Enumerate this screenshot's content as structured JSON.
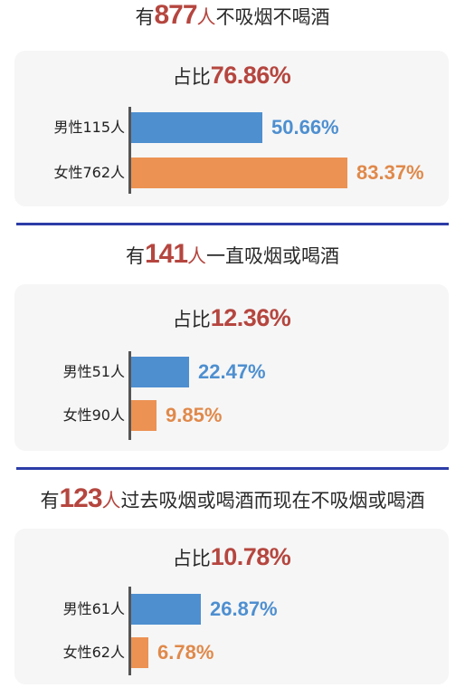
{
  "sections": [
    {
      "prefix": "有",
      "count": "877",
      "unit": "人",
      "desc": "不吸烟不喝酒",
      "ratio_label": "占比",
      "ratio_value": "76.86%",
      "rows": [
        {
          "label": "男性115人",
          "value_text": "50.66%"
        },
        {
          "label": "女性762人",
          "value_text": "83.37%"
        }
      ]
    },
    {
      "prefix": "有",
      "count": "141",
      "unit": "人",
      "desc": "一直吸烟或喝酒",
      "ratio_label": "占比",
      "ratio_value": "12.36%",
      "rows": [
        {
          "label": "男性51人",
          "value_text": "22.47%"
        },
        {
          "label": "女性90人",
          "value_text": "9.85%"
        }
      ]
    },
    {
      "prefix": "有",
      "count": "123",
      "unit": "人",
      "desc": "过去吸烟或喝酒而现在不吸烟或喝酒",
      "ratio_label": "占比",
      "ratio_value": "10.78%",
      "rows": [
        {
          "label": "男性61人",
          "value_text": "26.87%"
        },
        {
          "label": "女性62人",
          "value_text": "6.78%"
        }
      ]
    }
  ],
  "colors": {
    "male": "#4e8fd0",
    "female": "#ec9253",
    "highlight": "#b5463f",
    "divider": "#2c3ca8"
  },
  "chart_data": [
    {
      "type": "bar",
      "orientation": "horizontal",
      "title": "有877人不吸烟不喝酒",
      "subtitle": "占比76.86%",
      "categories": [
        "男性115人",
        "女性762人"
      ],
      "values": [
        50.66,
        83.37
      ],
      "unit": "%"
    },
    {
      "type": "bar",
      "orientation": "horizontal",
      "title": "有141人一直吸烟或喝酒",
      "subtitle": "占比12.36%",
      "categories": [
        "男性51人",
        "女性90人"
      ],
      "values": [
        22.47,
        9.85
      ],
      "unit": "%"
    },
    {
      "type": "bar",
      "orientation": "horizontal",
      "title": "有123人过去吸烟或喝酒而现在不吸烟或喝酒",
      "subtitle": "占比10.78%",
      "categories": [
        "男性61人",
        "女性62人"
      ],
      "values": [
        26.87,
        6.78
      ],
      "unit": "%"
    }
  ]
}
